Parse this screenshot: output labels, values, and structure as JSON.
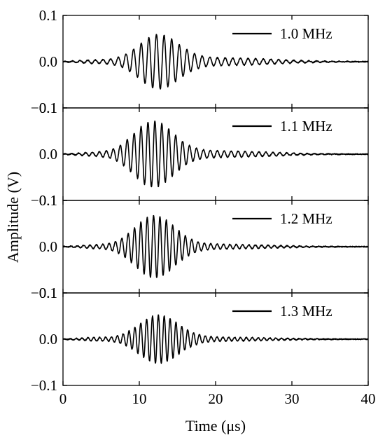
{
  "chart_data": {
    "type": "line",
    "layout": "stacked-panels",
    "x": {
      "label": "Time (μs)",
      "lim": [
        0,
        40
      ],
      "ticks": [
        0,
        10,
        20,
        30,
        40
      ],
      "tick_labels": [
        "0",
        "10",
        "20",
        "30",
        "40"
      ]
    },
    "y": {
      "label": "Amplitude (V)",
      "lim": [
        -0.1,
        0.1
      ],
      "ticks": [
        0.1,
        0.0,
        -0.1
      ],
      "tick_labels": [
        "0.1",
        "0.0",
        "−0.1"
      ]
    },
    "panels": [
      {
        "legend": "1.0 MHz",
        "frequency_mhz": 1.0,
        "signal_model": "gaussian-enveloped sinusoid",
        "peak_amplitude": 0.055,
        "envelope_center_us": 12.5,
        "envelope_width_us": 2.6,
        "tail_amplitude": 0.008,
        "noise_amplitude": 0.002
      },
      {
        "legend": "1.1 MHz",
        "frequency_mhz": 1.1,
        "signal_model": "gaussian-enveloped sinusoid",
        "peak_amplitude": 0.068,
        "envelope_center_us": 11.8,
        "envelope_width_us": 2.6,
        "tail_amplitude": 0.007,
        "noise_amplitude": 0.002
      },
      {
        "legend": "1.2 MHz",
        "frequency_mhz": 1.2,
        "signal_model": "gaussian-enveloped sinusoid",
        "peak_amplitude": 0.065,
        "envelope_center_us": 12.0,
        "envelope_width_us": 2.6,
        "tail_amplitude": 0.005,
        "noise_amplitude": 0.002
      },
      {
        "legend": "1.3 MHz",
        "frequency_mhz": 1.3,
        "signal_model": "gaussian-enveloped sinusoid",
        "peak_amplitude": 0.05,
        "envelope_center_us": 12.5,
        "envelope_width_us": 2.6,
        "tail_amplitude": 0.004,
        "noise_amplitude": 0.002
      }
    ],
    "line_color": "#000000",
    "legend_position": "top-right",
    "grid": false
  }
}
